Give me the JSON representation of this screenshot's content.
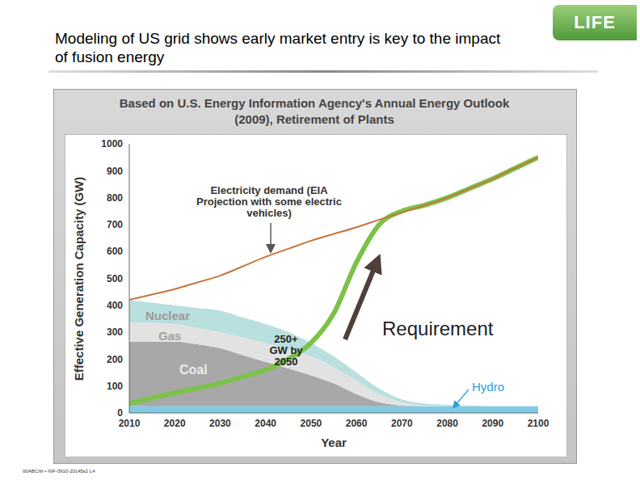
{
  "slide": {
    "title": "Modeling of US grid shows early market entry is key to the impact of fusion energy",
    "logo": "LIFE",
    "footer": "00ABC/th • NIF-0910-20145s2 L4"
  },
  "chart_data": {
    "type": "area",
    "title": "Based on U.S. Energy Information Agency's Annual Energy Outlook (2009), Retirement of Plants",
    "x_label": "Year",
    "y_label": "Effective Generation Capacity (GW)",
    "stacked": true,
    "grid": false,
    "xlim": [
      2010,
      2100
    ],
    "xticks": [
      2010,
      2020,
      2030,
      2040,
      2050,
      2060,
      2070,
      2080,
      2090,
      2100
    ],
    "ylim": [
      0,
      1000
    ],
    "yticks": [
      0,
      100,
      200,
      300,
      400,
      500,
      600,
      700,
      800,
      900,
      1000
    ],
    "x": [
      2010,
      2015,
      2020,
      2025,
      2030,
      2035,
      2040,
      2045,
      2050,
      2055,
      2060,
      2065,
      2070,
      2075,
      2080,
      2085,
      2090,
      2095,
      2100
    ],
    "series": [
      {
        "name": "Hydro",
        "type": "area",
        "color": "#7fcbe6",
        "values": [
          25,
          25,
          25,
          25,
          25,
          25,
          25,
          25,
          25,
          25,
          25,
          25,
          25,
          25,
          25,
          25,
          25,
          25,
          25
        ]
      },
      {
        "name": "Coal",
        "type": "area",
        "color": "#a8a8a8",
        "values": [
          240,
          240,
          240,
          230,
          215,
          190,
          165,
          140,
          115,
          85,
          45,
          15,
          3,
          0,
          0,
          0,
          0,
          0,
          0
        ]
      },
      {
        "name": "Gas",
        "type": "area",
        "color": "#e2e2e2",
        "values": [
          70,
          70,
          65,
          60,
          60,
          65,
          70,
          70,
          70,
          60,
          50,
          30,
          12,
          3,
          0,
          0,
          0,
          0,
          0
        ]
      },
      {
        "name": "Nuclear",
        "type": "area",
        "color": "#b9dfde",
        "values": [
          85,
          75,
          70,
          75,
          80,
          75,
          70,
          65,
          50,
          40,
          30,
          20,
          10,
          7,
          5,
          3,
          0,
          0,
          0
        ]
      },
      {
        "name": "Requirement",
        "type": "line",
        "color": "#7cc24a",
        "values": [
          35,
          55,
          75,
          92,
          110,
          135,
          160,
          200,
          260,
          370,
          560,
          700,
          750,
          772,
          800,
          835,
          870,
          910,
          950
        ]
      },
      {
        "name": "Electricity demand (EIA Projection with some electric vehicles)",
        "type": "line",
        "color": "#c8743c",
        "values": [
          420,
          440,
          460,
          485,
          510,
          545,
          580,
          610,
          640,
          665,
          690,
          718,
          745,
          772,
          800,
          835,
          870,
          910,
          950
        ]
      }
    ],
    "annotations": [
      "250+ GW by 2050"
    ]
  }
}
